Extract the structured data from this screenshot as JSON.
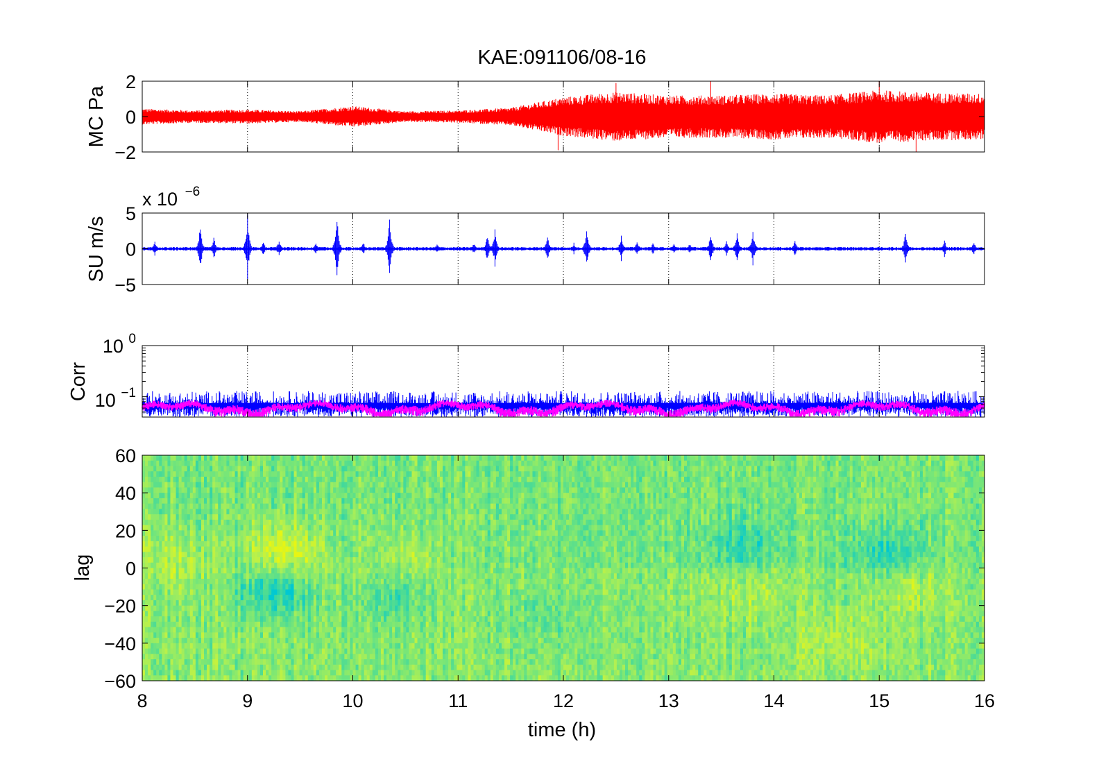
{
  "chart_data": [
    {
      "panel": "mc",
      "type": "line",
      "title": "KAE:091106/08-16",
      "ylabel": "MC Pa",
      "xlim": [
        8,
        16
      ],
      "ylim": [
        -2,
        2
      ],
      "yticks": [
        2,
        0,
        -2
      ],
      "yticklabels": [
        "2",
        "0",
        "−2"
      ],
      "xticks": [
        9,
        10,
        11,
        12,
        13,
        14,
        15
      ],
      "grid": "vertical dotted",
      "series": [
        {
          "color": "#ff0000",
          "envelope_x": [
            8,
            8.5,
            9,
            9.5,
            10,
            10.5,
            11,
            11.5,
            12,
            12.5,
            13,
            13.5,
            14,
            14.5,
            15,
            15.5,
            16
          ],
          "envelope_amplitude": [
            0.45,
            0.35,
            0.4,
            0.3,
            0.6,
            0.3,
            0.35,
            0.5,
            1.1,
            1.4,
            1.2,
            1.2,
            1.3,
            1.2,
            1.5,
            1.35,
            1.3
          ],
          "peaks": [
            {
              "x": 12.5,
              "y": 1.9
            },
            {
              "x": 13.4,
              "y": 2.0
            },
            {
              "x": 15.0,
              "y": 2.0
            },
            {
              "x": 11.95,
              "y": -1.9
            },
            {
              "x": 15.35,
              "y": -2.0
            }
          ]
        }
      ]
    },
    {
      "panel": "su",
      "type": "line",
      "ylabel": "SU m/s",
      "exponent_base": "x 10",
      "exponent_power": "−6",
      "xlim": [
        8,
        16
      ],
      "ylim": [
        -5,
        5
      ],
      "yticks": [
        5,
        0,
        -5
      ],
      "yticklabels": [
        "5",
        "0",
        "−5"
      ],
      "xticks": [
        9,
        10,
        11,
        12,
        13,
        14,
        15
      ],
      "grid": "vertical dotted",
      "series": [
        {
          "color": "#0000ff",
          "baseline_amplitude": 0.25,
          "bursts": [
            {
              "x": 8.12,
              "a": 1.2
            },
            {
              "x": 8.55,
              "a": 3.7
            },
            {
              "x": 8.68,
              "a": 1.8
            },
            {
              "x": 9.0,
              "a": 4.9
            },
            {
              "x": 9.15,
              "a": 1.2
            },
            {
              "x": 9.3,
              "a": 1.5
            },
            {
              "x": 9.65,
              "a": 1.0
            },
            {
              "x": 9.85,
              "a": 5.0
            },
            {
              "x": 10.1,
              "a": 1.0
            },
            {
              "x": 10.35,
              "a": 4.7
            },
            {
              "x": 10.8,
              "a": 0.8
            },
            {
              "x": 11.15,
              "a": 0.9
            },
            {
              "x": 11.28,
              "a": 2.4
            },
            {
              "x": 11.35,
              "a": 3.2
            },
            {
              "x": 11.85,
              "a": 2.1
            },
            {
              "x": 12.1,
              "a": 0.9
            },
            {
              "x": 12.22,
              "a": 3.2
            },
            {
              "x": 12.55,
              "a": 2.2
            },
            {
              "x": 12.7,
              "a": 1.3
            },
            {
              "x": 12.85,
              "a": 1.0
            },
            {
              "x": 13.05,
              "a": 0.8
            },
            {
              "x": 13.2,
              "a": 0.8
            },
            {
              "x": 13.4,
              "a": 2.6
            },
            {
              "x": 13.55,
              "a": 1.3
            },
            {
              "x": 13.65,
              "a": 2.5
            },
            {
              "x": 13.8,
              "a": 3.0
            },
            {
              "x": 14.2,
              "a": 1.4
            },
            {
              "x": 15.25,
              "a": 2.6
            },
            {
              "x": 15.62,
              "a": 1.4
            },
            {
              "x": 15.9,
              "a": 1.2
            }
          ]
        }
      ]
    },
    {
      "panel": "corr",
      "type": "line",
      "ylabel": "Corr",
      "yscale": "log",
      "xlim": [
        8,
        16
      ],
      "ylim": [
        0.04,
        1
      ],
      "ytick_labels": [
        {
          "base": "10",
          "power": "0",
          "value": 1
        },
        {
          "base": "10",
          "power": "−1",
          "value": 0.1
        }
      ],
      "xticks": [
        9,
        10,
        11,
        12,
        13,
        14,
        15
      ],
      "grid": "vertical dotted",
      "series": [
        {
          "color": "#0000ff",
          "level": 0.075,
          "upper_spread": 0.13,
          "lower": 0.04
        },
        {
          "color": "#ff00ff",
          "level": 0.06,
          "spread": 0.012
        }
      ]
    },
    {
      "panel": "lag",
      "type": "heatmap",
      "ylabel": "lag",
      "xlabel": "time (h)",
      "xlim": [
        8,
        16
      ],
      "ylim": [
        -60,
        60
      ],
      "yticks": [
        60,
        40,
        20,
        0,
        -20,
        -40,
        -60
      ],
      "yticklabels": [
        "60",
        "40",
        "20",
        "0",
        "−20",
        "−40",
        "−60"
      ],
      "xticks": [
        8,
        9,
        10,
        11,
        12,
        13,
        14,
        15,
        16
      ],
      "xticklabels": [
        "8",
        "9",
        "10",
        "11",
        "12",
        "13",
        "14",
        "15",
        "16"
      ],
      "colormap": [
        "#00c8d2",
        "#3cd7a0",
        "#78e678",
        "#b4f050",
        "#e6f514"
      ],
      "features": [
        {
          "x": 9.35,
          "y": 8,
          "v": 1.0
        },
        {
          "x": 9.25,
          "y": -12,
          "v": -1.0
        },
        {
          "x": 8.3,
          "y": 5,
          "v": 0.5
        },
        {
          "x": 10.5,
          "y": 5,
          "v": 0.4
        },
        {
          "x": 10.4,
          "y": -15,
          "v": -0.5
        },
        {
          "x": 13.7,
          "y": 12,
          "v": -0.6
        },
        {
          "x": 15.1,
          "y": 8,
          "v": -0.7
        },
        {
          "x": 13.8,
          "y": -12,
          "v": 0.4
        },
        {
          "x": 15.3,
          "y": -10,
          "v": 0.4
        },
        {
          "x": 14.6,
          "y": -40,
          "v": 0.4
        },
        {
          "x": 11.8,
          "y": -25,
          "v": -0.3
        }
      ]
    }
  ]
}
